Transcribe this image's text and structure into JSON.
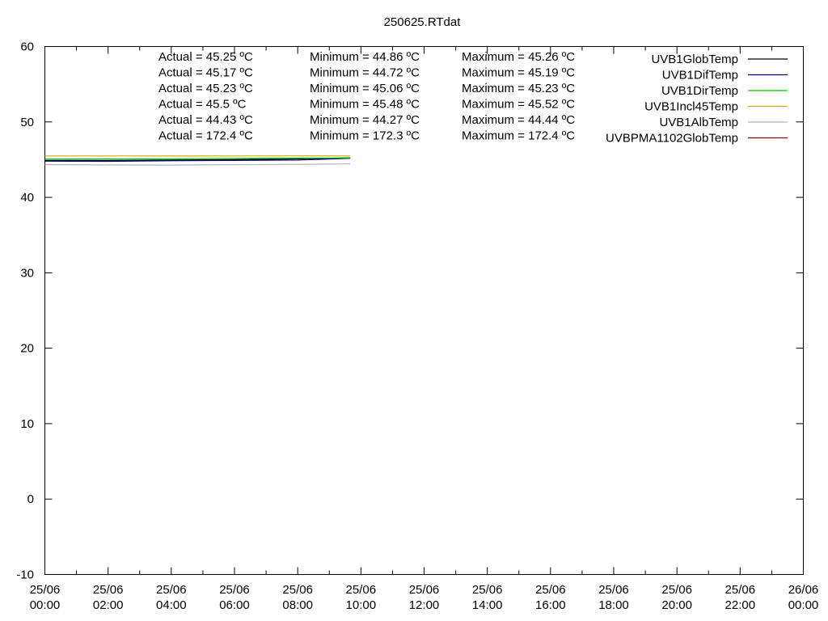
{
  "chart_data": {
    "type": "line",
    "title": "250625.RTdat",
    "xlabel": "",
    "ylabel": "",
    "ylim": [
      -10,
      60
    ],
    "y_ticks": [
      -10,
      0,
      10,
      20,
      30,
      40,
      50,
      60
    ],
    "x_range": [
      "2025-06-25 00:00",
      "2025-06-26 00:00"
    ],
    "x_ticks": [
      {
        "t": "2025-06-25 00:00",
        "l1": "25/06",
        "l2": "00:00"
      },
      {
        "t": "2025-06-25 02:00",
        "l1": "25/06",
        "l2": "02:00"
      },
      {
        "t": "2025-06-25 04:00",
        "l1": "25/06",
        "l2": "04:00"
      },
      {
        "t": "2025-06-25 06:00",
        "l1": "25/06",
        "l2": "06:00"
      },
      {
        "t": "2025-06-25 08:00",
        "l1": "25/06",
        "l2": "08:00"
      },
      {
        "t": "2025-06-25 10:00",
        "l1": "25/06",
        "l2": "10:00"
      },
      {
        "t": "2025-06-25 12:00",
        "l1": "25/06",
        "l2": "12:00"
      },
      {
        "t": "2025-06-25 14:00",
        "l1": "25/06",
        "l2": "14:00"
      },
      {
        "t": "2025-06-25 16:00",
        "l1": "25/06",
        "l2": "16:00"
      },
      {
        "t": "2025-06-25 18:00",
        "l1": "25/06",
        "l2": "18:00"
      },
      {
        "t": "2025-06-25 20:00",
        "l1": "25/06",
        "l2": "20:00"
      },
      {
        "t": "2025-06-25 22:00",
        "l1": "25/06",
        "l2": "22:00"
      },
      {
        "t": "2025-06-26 00:00",
        "l1": "26/06",
        "l2": "00:00"
      }
    ],
    "grid": false,
    "legend_position": "top-right",
    "series": [
      {
        "name": "UVB1GlobTemp",
        "color": "#000000",
        "actual": "Actual = 45.25 ºC",
        "minimum": "Minimum = 44.86 ºC",
        "maximum": "Maximum = 45.26 ºC",
        "x": [
          "2025-06-25 00:00",
          "2025-06-25 02:00",
          "2025-06-25 04:00",
          "2025-06-25 06:00",
          "2025-06-25 08:00",
          "2025-06-25 09:40"
        ],
        "y": [
          44.9,
          44.9,
          44.95,
          45.0,
          45.1,
          45.25
        ]
      },
      {
        "name": "UVB1DifTemp",
        "color": "#00007f",
        "actual": "Actual = 45.17 ºC",
        "minimum": "Minimum = 44.72 ºC",
        "maximum": "Maximum = 45.19 ºC",
        "x": [
          "2025-06-25 00:00",
          "2025-06-25 02:00",
          "2025-06-25 04:00",
          "2025-06-25 06:00",
          "2025-06-25 08:00",
          "2025-06-25 09:40"
        ],
        "y": [
          44.8,
          44.78,
          44.85,
          44.9,
          44.95,
          45.17
        ]
      },
      {
        "name": "UVB1DirTemp",
        "color": "#00c800",
        "actual": "Actual = 45.23 ºC",
        "minimum": "Minimum = 45.06 ºC",
        "maximum": "Maximum = 45.23 ºC",
        "x": [
          "2025-06-25 00:00",
          "2025-06-25 02:00",
          "2025-06-25 04:00",
          "2025-06-25 06:00",
          "2025-06-25 08:00",
          "2025-06-25 09:40"
        ],
        "y": [
          45.08,
          45.1,
          45.12,
          45.15,
          45.2,
          45.23
        ]
      },
      {
        "name": "UVB1Incl45Temp",
        "color": "#c8b400",
        "actual": "Actual = 45.5 ºC",
        "minimum": "Minimum = 45.48 ºC",
        "maximum": "Maximum = 45.52 ºC",
        "x": [
          "2025-06-25 00:00",
          "2025-06-25 02:00",
          "2025-06-25 04:00",
          "2025-06-25 06:00",
          "2025-06-25 08:00",
          "2025-06-25 09:40"
        ],
        "y": [
          45.5,
          45.5,
          45.49,
          45.5,
          45.51,
          45.5
        ]
      },
      {
        "name": "UVB1AlbTemp",
        "color": "#b4b4b4",
        "actual": "Actual = 44.43 ºC",
        "minimum": "Minimum = 44.27 ºC",
        "maximum": "Maximum = 44.44 ºC",
        "x": [
          "2025-06-25 00:00",
          "2025-06-25 02:00",
          "2025-06-25 04:00",
          "2025-06-25 06:00",
          "2025-06-25 08:00",
          "2025-06-25 09:40"
        ],
        "y": [
          44.35,
          44.3,
          44.28,
          44.33,
          44.38,
          44.43
        ]
      },
      {
        "name": "UVBPMA1102GlobTemp",
        "color": "#7f0000",
        "actual": "Actual = 172.4 ºC",
        "minimum": "Minimum = 172.3 ºC",
        "maximum": "Maximum = 172.4 ºC",
        "x": [],
        "y": []
      }
    ]
  }
}
